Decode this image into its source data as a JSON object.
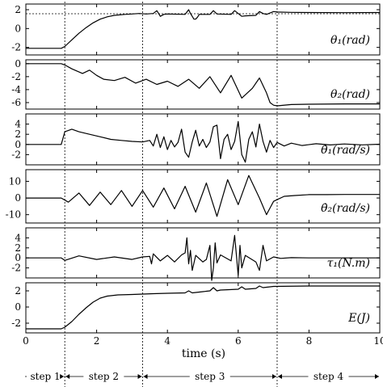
{
  "chart_data": {
    "type": "line",
    "shared_x": {
      "label": "time (s)",
      "range": [
        0,
        10
      ],
      "ticks": [
        0,
        2,
        4,
        6,
        8,
        10
      ]
    },
    "panels": [
      {
        "ylabel": "θ₁(rad)",
        "ylim": [
          -2.8,
          2.6
        ],
        "yticks": [
          -2,
          0,
          2
        ],
        "reference_lines": [
          1.57
        ],
        "series": [
          {
            "x": [
              0,
              1.0,
              1.1,
              1.3,
              1.5,
              1.7,
              1.9,
              2.1,
              2.3,
              2.5,
              2.8,
              3.0,
              3.2,
              3.4,
              3.6,
              3.7,
              3.75,
              3.8,
              3.9,
              4.0,
              4.5,
              4.55,
              4.6,
              4.65,
              4.7,
              4.75,
              4.8,
              4.85,
              4.9,
              5.2,
              5.3,
              5.4,
              5.8,
              5.9,
              6.0,
              6.1,
              6.2,
              6.5,
              6.6,
              6.7,
              6.8,
              6.9,
              7.0,
              7.1,
              7.5,
              8.0,
              9.0,
              10
            ],
            "y": [
              -2.1,
              -2.1,
              -1.9,
              -1.2,
              -0.5,
              0.1,
              0.6,
              1.0,
              1.25,
              1.4,
              1.5,
              1.55,
              1.6,
              1.55,
              1.6,
              1.9,
              1.6,
              1.3,
              1.5,
              1.55,
              1.5,
              1.75,
              2.0,
              1.6,
              1.3,
              1.0,
              1.0,
              1.2,
              1.5,
              1.5,
              1.9,
              1.55,
              1.5,
              1.9,
              1.6,
              1.3,
              1.35,
              1.4,
              1.8,
              1.6,
              1.5,
              1.65,
              1.8,
              1.75,
              1.72,
              1.7,
              1.68,
              1.7
            ]
          }
        ]
      },
      {
        "ylabel": "θ₂(rad)",
        "ylim": [
          -7.0,
          0.6
        ],
        "yticks": [
          0,
          -2,
          -4,
          -6
        ],
        "series": [
          {
            "x": [
              0,
              1.0,
              1.1,
              1.3,
              1.6,
              1.8,
              2.0,
              2.2,
              2.5,
              2.8,
              3.1,
              3.4,
              3.7,
              4.0,
              4.3,
              4.6,
              4.9,
              5.2,
              5.5,
              5.8,
              6.1,
              6.4,
              6.6,
              6.8,
              6.9,
              7.0,
              7.1,
              7.5,
              8.0,
              9.0,
              10
            ],
            "y": [
              0,
              0,
              -0.2,
              -0.8,
              -1.5,
              -1.0,
              -1.8,
              -2.4,
              -2.6,
              -2.1,
              -3.0,
              -2.4,
              -3.2,
              -2.7,
              -3.5,
              -2.4,
              -3.8,
              -2.0,
              -4.5,
              -1.8,
              -5.3,
              -3.8,
              -2.2,
              -4.5,
              -6.0,
              -6.4,
              -6.5,
              -6.3,
              -6.25,
              -6.2,
              -6.2
            ]
          }
        ]
      },
      {
        "ylabel": "θ̇₁(rad/s)",
        "ylim": [
          -4.0,
          6.0
        ],
        "yticks": [
          -2,
          0,
          2,
          4
        ],
        "series": [
          {
            "x": [
              0,
              1.0,
              1.1,
              1.3,
              1.5,
              1.8,
              2.1,
              2.4,
              2.7,
              3.0,
              3.3,
              3.5,
              3.6,
              3.7,
              3.8,
              3.9,
              4.0,
              4.1,
              4.2,
              4.3,
              4.4,
              4.5,
              4.6,
              4.7,
              4.8,
              4.9,
              5.0,
              5.1,
              5.2,
              5.3,
              5.4,
              5.5,
              5.6,
              5.7,
              5.8,
              5.9,
              6.0,
              6.1,
              6.2,
              6.3,
              6.4,
              6.5,
              6.6,
              6.7,
              6.8,
              6.9,
              7.0,
              7.1,
              7.3,
              7.5,
              7.8,
              8.2,
              8.6,
              9.0,
              9.5,
              10
            ],
            "y": [
              0,
              0,
              2.5,
              3.0,
              2.5,
              2.0,
              1.5,
              1.0,
              0.8,
              0.6,
              0.5,
              0.8,
              -0.3,
              2.0,
              -0.6,
              1.5,
              -1.0,
              0.8,
              -0.5,
              0.4,
              3.0,
              -1.5,
              -2.5,
              0.5,
              2.8,
              -0.3,
              1.0,
              -0.6,
              0.5,
              3.5,
              3.8,
              -2.8,
              1.0,
              2.0,
              -1.0,
              0.6,
              4.5,
              -2.0,
              -3.5,
              1.0,
              2.5,
              -0.5,
              4.0,
              0.6,
              -1.5,
              0.8,
              -0.6,
              0.4,
              -0.3,
              0.25,
              -0.2,
              0.15,
              -0.1,
              0.1,
              -0.08,
              0.05
            ]
          }
        ]
      },
      {
        "ylabel": "θ̇₂(rad/s)",
        "ylim": [
          -15,
          17
        ],
        "yticks": [
          -10,
          0,
          10
        ],
        "series": [
          {
            "x": [
              0,
              1.0,
              1.2,
              1.5,
              1.8,
              2.1,
              2.4,
              2.7,
              3.0,
              3.3,
              3.6,
              3.9,
              4.2,
              4.5,
              4.8,
              5.1,
              5.4,
              5.7,
              6.0,
              6.3,
              6.6,
              6.8,
              6.9,
              7.0,
              7.1,
              7.3,
              7.6,
              8.0,
              8.5,
              9.0,
              10
            ],
            "y": [
              0,
              0,
              -2.5,
              3.0,
              -4.5,
              3.5,
              -4.0,
              4.5,
              -5.0,
              4.5,
              -5.5,
              6.0,
              -6.5,
              7.0,
              -8.5,
              9.0,
              -11.0,
              11.0,
              -4.0,
              13.5,
              0,
              -10.0,
              -6.0,
              -2.0,
              -1.0,
              1.0,
              1.5,
              2.0,
              2.0,
              2.1,
              2.1
            ]
          }
        ]
      },
      {
        "ylabel": "τ₁(N.m)",
        "ylim": [
          -4.0,
          6.0
        ],
        "yticks": [
          -2,
          0,
          2,
          4
        ],
        "series": [
          {
            "x": [
              0,
              1.0,
              1.1,
              1.5,
              2.0,
              2.5,
              3.0,
              3.3,
              3.5,
              3.55,
              3.6,
              3.8,
              4.0,
              4.2,
              4.4,
              4.5,
              4.55,
              4.6,
              4.65,
              4.7,
              4.8,
              5.0,
              5.1,
              5.2,
              5.25,
              5.3,
              5.35,
              5.4,
              5.5,
              5.8,
              5.9,
              6.0,
              6.05,
              6.1,
              6.2,
              6.5,
              6.6,
              6.7,
              6.8,
              7.0,
              7.2,
              7.5,
              8.0,
              10
            ],
            "y": [
              0,
              0,
              -0.5,
              0.4,
              -0.3,
              0.2,
              -0.3,
              0.2,
              0.3,
              -1.2,
              0.8,
              -0.6,
              0.5,
              -0.8,
              0.6,
              1.0,
              4.0,
              -1.2,
              1.5,
              -2.5,
              0.5,
              -0.8,
              -0.3,
              2.5,
              -4.5,
              -2.0,
              3.0,
              -1.0,
              0.6,
              -0.6,
              4.5,
              -3.5,
              2.5,
              -2.0,
              0.5,
              -0.8,
              -2.5,
              2.5,
              -0.6,
              0.2,
              -0.1,
              0.05,
              0,
              0
            ]
          }
        ]
      },
      {
        "ylabel": "E(J)",
        "ylim": [
          -3.2,
          3.0
        ],
        "yticks": [
          -2,
          0,
          2
        ],
        "series": [
          {
            "x": [
              0,
              1.0,
              1.1,
              1.3,
              1.5,
              1.7,
              1.9,
              2.1,
              2.3,
              2.6,
              3.0,
              3.3,
              3.6,
              4.0,
              4.5,
              4.6,
              4.7,
              5.0,
              5.2,
              5.3,
              5.4,
              5.5,
              6.0,
              6.1,
              6.2,
              6.5,
              6.6,
              6.7,
              7.0,
              8.0,
              9.0,
              10
            ],
            "y": [
              -2.7,
              -2.7,
              -2.5,
              -1.8,
              -0.9,
              -0.1,
              0.6,
              1.1,
              1.35,
              1.5,
              1.55,
              1.6,
              1.65,
              1.7,
              1.75,
              2.0,
              1.75,
              1.9,
              2.0,
              2.4,
              2.0,
              2.1,
              2.2,
              2.5,
              2.2,
              2.3,
              2.6,
              2.4,
              2.55,
              2.6,
              2.6,
              2.6
            ]
          }
        ]
      }
    ],
    "vertical_markers": [
      1.1,
      3.3,
      7.1
    ],
    "steps": [
      {
        "label": "step 1",
        "start": 0,
        "end": 1.1
      },
      {
        "label": "step 2",
        "start": 1.1,
        "end": 3.3
      },
      {
        "label": "step 3",
        "start": 3.3,
        "end": 7.1
      },
      {
        "label": "step 4",
        "start": 7.1,
        "end": 10
      }
    ]
  }
}
